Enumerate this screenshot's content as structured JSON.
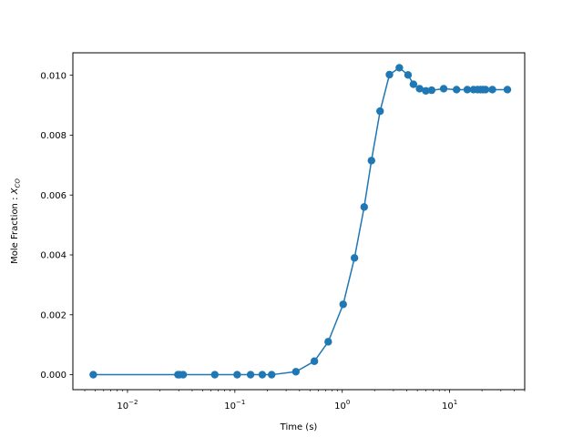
{
  "chart_data": {
    "type": "line",
    "title": "",
    "xlabel": "Time (s)",
    "ylabel_main": "Mole Fraction : ",
    "ylabel_var": "X",
    "ylabel_sub": "CO",
    "xscale": "log",
    "xlim": [
      0.0031,
      50
    ],
    "ylim": [
      -0.0005,
      0.01075
    ],
    "grid": false,
    "legend": "none",
    "color": "#1f77b4",
    "yticks": [
      {
        "value": 0.0,
        "label": "0.000"
      },
      {
        "value": 0.002,
        "label": "0.002"
      },
      {
        "value": 0.004,
        "label": "0.004"
      },
      {
        "value": 0.006,
        "label": "0.006"
      },
      {
        "value": 0.008,
        "label": "0.008"
      },
      {
        "value": 0.01,
        "label": "0.010"
      }
    ],
    "xticks": [
      {
        "value": 0.01,
        "base": "10",
        "exp": "−2"
      },
      {
        "value": 0.1,
        "base": "10",
        "exp": "−1"
      },
      {
        "value": 1,
        "base": "10",
        "exp": "0"
      },
      {
        "value": 10,
        "base": "10",
        "exp": "1"
      }
    ],
    "series": [
      {
        "x": [
          0.0048,
          0.0295,
          0.0305,
          0.033,
          0.065,
          0.105,
          0.14,
          0.18,
          0.22,
          0.37,
          0.55,
          0.74,
          1.02,
          1.3,
          1.6,
          1.87,
          2.25,
          2.75,
          3.4,
          4.1,
          4.6,
          5.25,
          6.0,
          6.8,
          8.8,
          11.6,
          14.6,
          16.7,
          18.2,
          19.3,
          20.4,
          21.6,
          25.0,
          34.5
        ],
        "y": [
          0.0,
          0.0,
          0.0,
          0.0,
          0.0,
          0.0,
          0.0,
          0.0,
          0.0,
          0.0001,
          0.00045,
          0.0011,
          0.00235,
          0.0039,
          0.0056,
          0.00715,
          0.0088,
          0.01002,
          0.01025,
          0.01001,
          0.0097,
          0.00955,
          0.00948,
          0.0095,
          0.00955,
          0.00952,
          0.00952,
          0.00952,
          0.00952,
          0.00952,
          0.00952,
          0.00952,
          0.00952,
          0.00952
        ]
      }
    ]
  }
}
